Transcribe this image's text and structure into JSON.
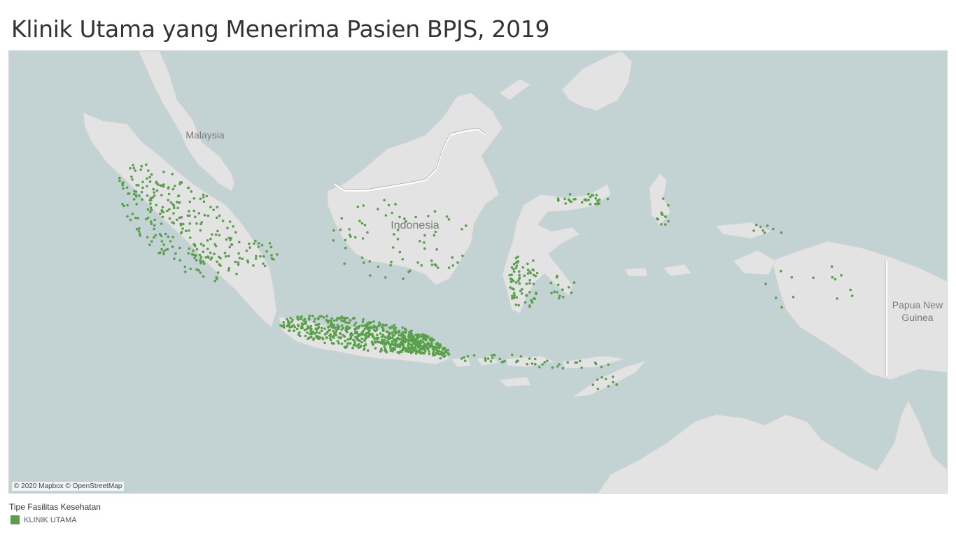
{
  "title": "Klinik Utama yang Menerima Pasien BPJS, 2019",
  "map": {
    "attribution": "© 2020 Mapbox © OpenStreetMap",
    "place_labels": {
      "malaysia": "Malaysia",
      "indonesia": "Indonesia",
      "png_line1": "Papua New",
      "png_line2": "Guinea"
    },
    "colors": {
      "water": "#c3d3d3",
      "land": "#e4e4e4",
      "border": "#ffffff",
      "marker": "#58a04a"
    }
  },
  "legend": {
    "title": "Tipe Fasilitas Kesehatan",
    "items": [
      {
        "label": "KLINIK UTAMA",
        "color": "#58a04a"
      }
    ]
  }
}
